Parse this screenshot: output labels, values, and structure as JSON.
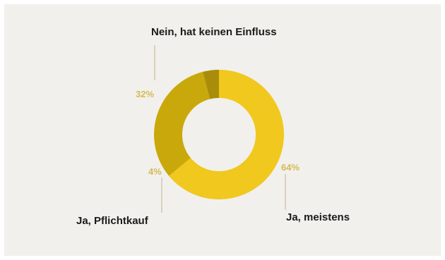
{
  "colors": {
    "background": "#f2f0ec",
    "slice_main": "#f0c81e",
    "slice_secondary": "#c9a80b",
    "slice_small": "#a98d0a",
    "pct_text": "#d3bb57"
  },
  "chart_data": {
    "type": "pie",
    "variant": "donut",
    "title": "",
    "categories": [
      "Ja, meistens",
      "Nein, hat keinen Einfluss",
      "Ja, Pflichtkauf"
    ],
    "values": [
      64,
      32,
      4
    ],
    "value_labels": [
      "64%",
      "32%",
      "4%"
    ],
    "colors": [
      "#f0c81e",
      "#c9a80b",
      "#a98d0a"
    ],
    "start_angle_deg": 0,
    "direction": "clockwise"
  }
}
